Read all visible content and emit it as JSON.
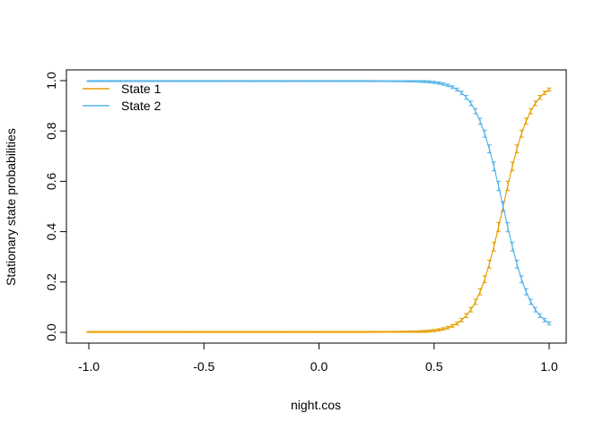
{
  "chart_data": {
    "type": "line",
    "xlabel": "night.cos",
    "ylabel": "Stationary state probabilities",
    "xlim": [
      -1.0,
      1.0
    ],
    "ylim": [
      0.0,
      1.0
    ],
    "x_ticks": [
      -1.0,
      -0.5,
      0.0,
      0.5,
      1.0
    ],
    "x_tick_labels": [
      "-1.0",
      "-0.5",
      "0.0",
      "0.5",
      "1.0"
    ],
    "y_ticks": [
      0.0,
      0.2,
      0.4,
      0.6,
      0.8,
      1.0
    ],
    "y_tick_labels": [
      "0.0",
      "0.2",
      "0.4",
      "0.6",
      "0.8",
      "1.0"
    ],
    "grid": false,
    "legend": {
      "placement": "top-left",
      "border": false
    },
    "logistic_model": {
      "intercept": -13.2,
      "slope": 16.5
    },
    "x_range": {
      "from": -1.0,
      "to": 1.0,
      "step": 0.02
    },
    "series": [
      {
        "name": "State 1",
        "color": "#E69F00",
        "curve": "rising"
      },
      {
        "name": "State 2",
        "color": "#56B4E9",
        "curve": "falling"
      }
    ],
    "error_bars": true
  }
}
